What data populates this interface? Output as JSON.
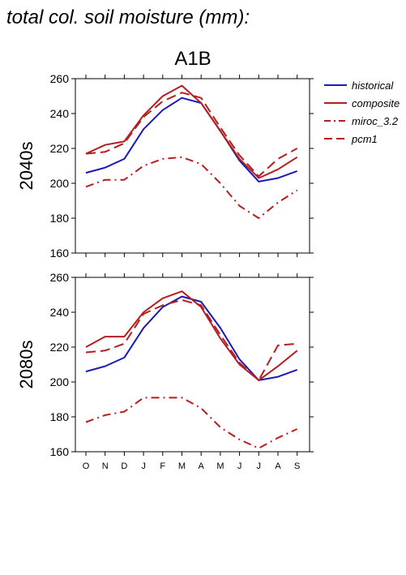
{
  "figure": {
    "title": "total col. soil moisture (mm):",
    "scenario": "A1B"
  },
  "legend": {
    "items": [
      {
        "label": "historical",
        "color": "#1a1ab4",
        "dash": "solid"
      },
      {
        "label": "composite",
        "color": "#b41e1e",
        "dash": "solid"
      },
      {
        "label": "miroc_3.2",
        "color": "#b41e1e",
        "dash": "dashdot"
      },
      {
        "label": "pcm1",
        "color": "#b41e1e",
        "dash": "dash"
      }
    ]
  },
  "chart_data": [
    {
      "type": "line",
      "panel_label": "2040s",
      "categories": [
        "O",
        "N",
        "D",
        "J",
        "F",
        "M",
        "A",
        "M",
        "J",
        "J",
        "A",
        "S"
      ],
      "ylim": [
        160,
        260
      ],
      "yticks": [
        160,
        180,
        200,
        220,
        240,
        260
      ],
      "series": [
        {
          "name": "historical",
          "values": [
            206,
            209,
            214,
            231,
            242,
            249,
            246,
            230,
            213,
            201,
            203,
            207
          ]
        },
        {
          "name": "composite",
          "values": [
            217,
            222,
            224,
            239,
            250,
            256,
            246,
            230,
            214,
            203,
            208,
            215
          ]
        },
        {
          "name": "miroc_3.2",
          "values": [
            198,
            202,
            202,
            210,
            214,
            215,
            211,
            200,
            187,
            180,
            189,
            196
          ]
        },
        {
          "name": "pcm1",
          "values": [
            217,
            218,
            223,
            238,
            247,
            252,
            249,
            232,
            216,
            204,
            214,
            220
          ]
        }
      ]
    },
    {
      "type": "line",
      "panel_label": "2080s",
      "categories": [
        "O",
        "N",
        "D",
        "J",
        "F",
        "M",
        "A",
        "M",
        "J",
        "J",
        "A",
        "S"
      ],
      "ylim": [
        160,
        260
      ],
      "yticks": [
        160,
        180,
        200,
        220,
        240,
        260
      ],
      "series": [
        {
          "name": "historical",
          "values": [
            206,
            209,
            214,
            231,
            243,
            249,
            246,
            231,
            213,
            201,
            203,
            207
          ]
        },
        {
          "name": "composite",
          "values": [
            220,
            226,
            226,
            240,
            248,
            252,
            243,
            225,
            210,
            201,
            209,
            218
          ]
        },
        {
          "name": "miroc_3.2",
          "values": [
            177,
            181,
            183,
            191,
            191,
            191,
            185,
            174,
            167,
            162,
            168,
            173
          ]
        },
        {
          "name": "pcm1",
          "values": [
            217,
            218,
            222,
            239,
            244,
            247,
            244,
            227,
            211,
            201,
            221,
            222
          ]
        }
      ]
    }
  ]
}
